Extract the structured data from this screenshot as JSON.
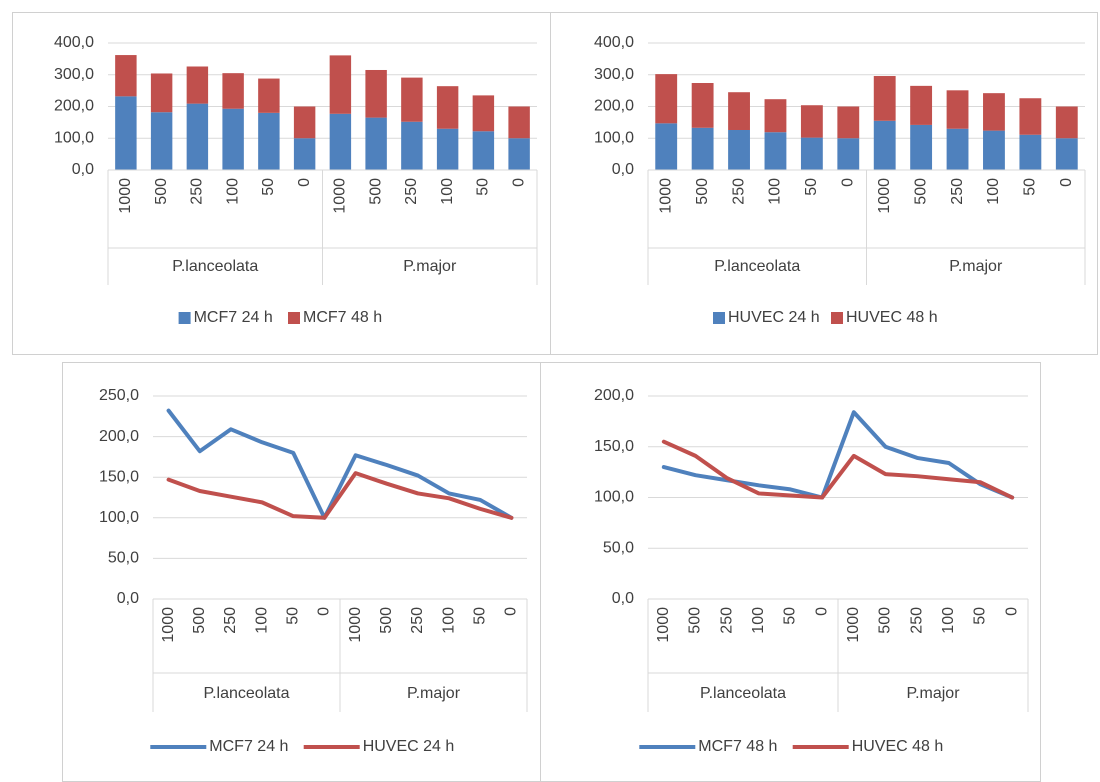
{
  "chart_data": [
    {
      "type": "bar",
      "stacked": true,
      "grid": true,
      "legend": "bottom",
      "groups": [
        {
          "label": "P.lanceolata",
          "categories": [
            "1000",
            "500",
            "250",
            "100",
            "50",
            "0"
          ]
        },
        {
          "label": "P.major",
          "categories": [
            "1000",
            "500",
            "250",
            "100",
            "50",
            "0"
          ]
        }
      ],
      "series": [
        {
          "name": "MCF7 24 h",
          "color": "#4f81bd",
          "values": [
            232,
            182,
            209,
            193,
            180,
            100,
            177,
            165,
            152,
            130,
            122,
            100
          ]
        },
        {
          "name": "MCF7 48 h",
          "color": "#c0504d",
          "values": [
            130,
            122,
            117,
            112,
            108,
            100,
            184,
            150,
            139,
            134,
            113,
            100
          ]
        }
      ],
      "ylim": [
        0,
        400
      ],
      "yticks": [
        {
          "value": 0,
          "label": "0,0"
        },
        {
          "value": 100,
          "label": "100,0"
        },
        {
          "value": 200,
          "label": "200,0"
        },
        {
          "value": 300,
          "label": "300,0"
        },
        {
          "value": 400,
          "label": "400,0"
        }
      ]
    },
    {
      "type": "bar",
      "stacked": true,
      "grid": true,
      "legend": "bottom",
      "groups": [
        {
          "label": "P.lanceolata",
          "categories": [
            "1000",
            "500",
            "250",
            "100",
            "50",
            "0"
          ]
        },
        {
          "label": "P.major",
          "categories": [
            "1000",
            "500",
            "250",
            "100",
            "50",
            "0"
          ]
        }
      ],
      "series": [
        {
          "name": "HUVEC 24 h",
          "color": "#4f81bd",
          "values": [
            147,
            133,
            126,
            119,
            102,
            100,
            155,
            142,
            130,
            124,
            111,
            100
          ]
        },
        {
          "name": "HUVEC 48 h",
          "color": "#c0504d",
          "values": [
            155,
            141,
            119,
            104,
            102,
            100,
            141,
            123,
            121,
            118,
            115,
            100
          ]
        }
      ],
      "ylim": [
        0,
        400
      ],
      "yticks": [
        {
          "value": 0,
          "label": "0,0"
        },
        {
          "value": 100,
          "label": "100,0"
        },
        {
          "value": 200,
          "label": "200,0"
        },
        {
          "value": 300,
          "label": "300,0"
        },
        {
          "value": 400,
          "label": "400,0"
        }
      ]
    },
    {
      "type": "line",
      "grid": true,
      "legend": "bottom",
      "groups": [
        {
          "label": "P.lanceolata",
          "categories": [
            "1000",
            "500",
            "250",
            "100",
            "50",
            "0"
          ]
        },
        {
          "label": "P.major",
          "categories": [
            "1000",
            "500",
            "250",
            "100",
            "50",
            "0"
          ]
        }
      ],
      "series": [
        {
          "name": "MCF7 24 h",
          "color": "#4f81bd",
          "values": [
            232,
            182,
            209,
            193,
            180,
            100,
            177,
            165,
            152,
            130,
            122,
            100
          ]
        },
        {
          "name": "HUVEC 24 h",
          "color": "#c0504d",
          "values": [
            147,
            133,
            126,
            119,
            102,
            100,
            155,
            142,
            130,
            124,
            111,
            100
          ]
        }
      ],
      "ylim": [
        0,
        250
      ],
      "yticks": [
        {
          "value": 0,
          "label": "0,0"
        },
        {
          "value": 50,
          "label": "50,0"
        },
        {
          "value": 100,
          "label": "100,0"
        },
        {
          "value": 150,
          "label": "150,0"
        },
        {
          "value": 200,
          "label": "200,0"
        },
        {
          "value": 250,
          "label": "250,0"
        }
      ]
    },
    {
      "type": "line",
      "grid": true,
      "legend": "bottom",
      "groups": [
        {
          "label": "P.lanceolata",
          "categories": [
            "1000",
            "500",
            "250",
            "100",
            "50",
            "0"
          ]
        },
        {
          "label": "P.major",
          "categories": [
            "1000",
            "500",
            "250",
            "100",
            "50",
            "0"
          ]
        }
      ],
      "series": [
        {
          "name": "MCF7 48 h",
          "color": "#4f81bd",
          "values": [
            130,
            122,
            117,
            112,
            108,
            100,
            184,
            150,
            139,
            134,
            113,
            100
          ]
        },
        {
          "name": "HUVEC 48 h",
          "color": "#c0504d",
          "values": [
            155,
            141,
            119,
            104,
            102,
            100,
            141,
            123,
            121,
            118,
            115,
            100
          ]
        }
      ],
      "ylim": [
        0,
        200
      ],
      "yticks": [
        {
          "value": 0,
          "label": "0,0"
        },
        {
          "value": 50,
          "label": "50,0"
        },
        {
          "value": 100,
          "label": "100,0"
        },
        {
          "value": 150,
          "label": "150,0"
        },
        {
          "value": 200,
          "label": "200,0"
        }
      ]
    }
  ]
}
